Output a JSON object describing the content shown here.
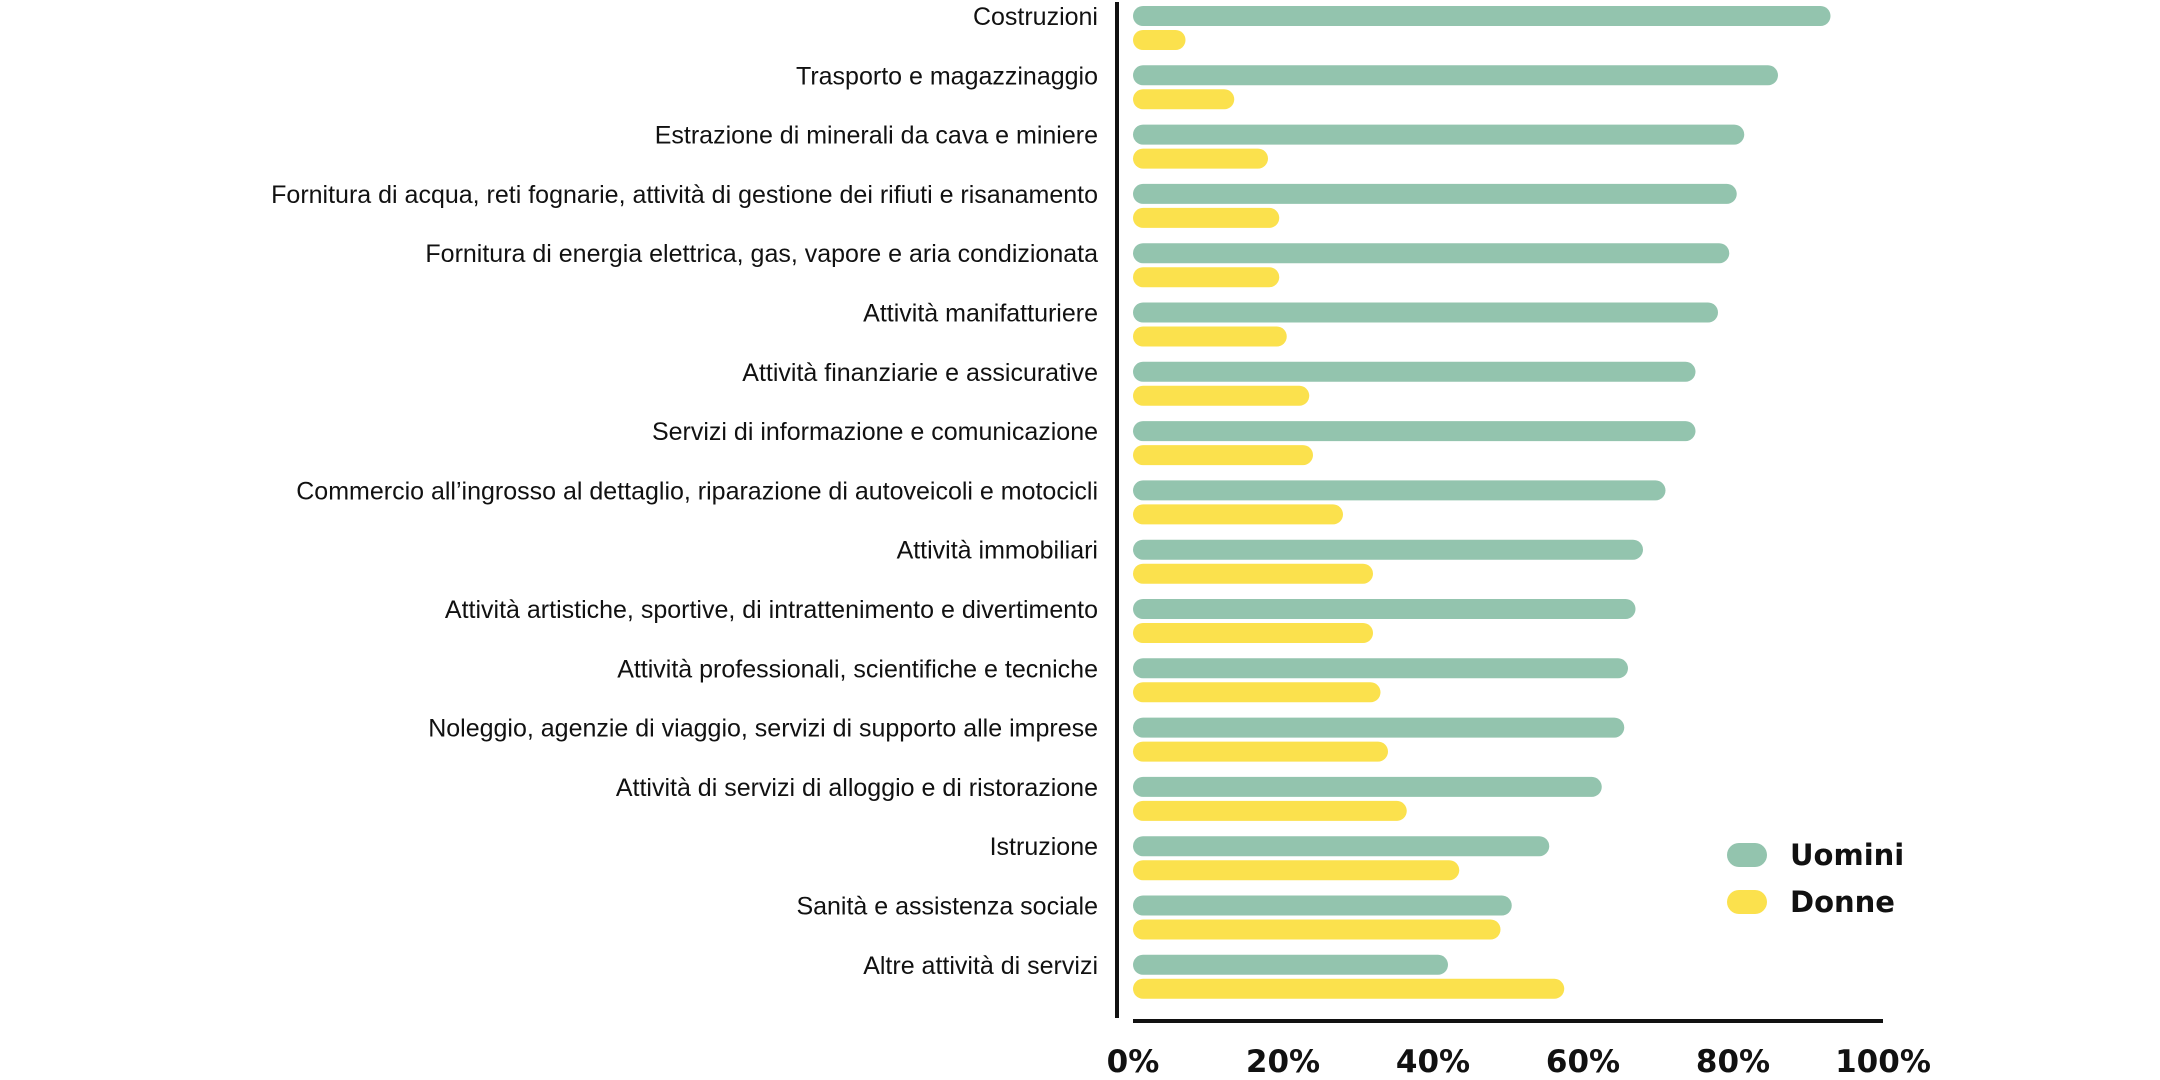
{
  "chart_data": {
    "type": "bar",
    "orientation": "horizontal",
    "title": "",
    "xlabel": "",
    "ylabel": "",
    "xlim": [
      0,
      100
    ],
    "x_ticks": [
      "0%",
      "20%",
      "40%",
      "60%",
      "80%",
      "100%"
    ],
    "grid": false,
    "legend_position": "bottom-right",
    "categories": [
      "Costruzioni",
      "Trasporto e magazzinaggio",
      "Estrazione di minerali da cava e miniere",
      "Fornitura di acqua, reti fognarie, attività di gestione dei rifiuti e risanamento",
      "Fornitura di energia elettrica, gas, vapore e aria condizionata",
      "Attività manifatturiere",
      "Attività finanziarie e assicurative",
      "Servizi di informazione e comunicazione",
      "Commercio all’ingrosso al dettaglio, riparazione di autoveicoli e motocicli",
      "Attività immobiliari",
      "Attività artistiche, sportive, di intrattenimento e divertimento",
      "Attività professionali, scientifiche e tecniche",
      "Noleggio, agenzie di viaggio, servizi di supporto alle imprese",
      "Attività di servizi di alloggio e di ristorazione",
      "Istruzione",
      "Sanità e assistenza sociale",
      "Altre attività di servizi"
    ],
    "series": [
      {
        "name": "Uomini",
        "color": "#93c4ae",
        "values": [
          93,
          86,
          81.5,
          80.5,
          79.5,
          78,
          75,
          75,
          71,
          68,
          67,
          66,
          65.5,
          62.5,
          55.5,
          50.5,
          42
        ]
      },
      {
        "name": "Donne",
        "color": "#fbe14d",
        "values": [
          7,
          13.5,
          18,
          19.5,
          19.5,
          20.5,
          23.5,
          24,
          28,
          32,
          32,
          33,
          34,
          36.5,
          43.5,
          49,
          57.5
        ]
      }
    ]
  }
}
